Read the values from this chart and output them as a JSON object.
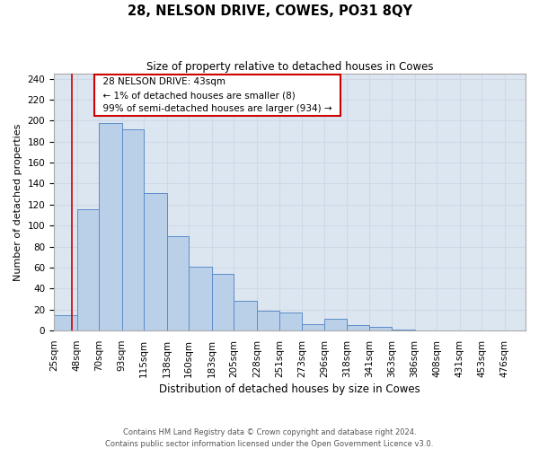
{
  "title": "28, NELSON DRIVE, COWES, PO31 8QY",
  "subtitle": "Size of property relative to detached houses in Cowes",
  "xlabel": "Distribution of detached houses by size in Cowes",
  "ylabel": "Number of detached properties",
  "bin_labels": [
    "25sqm",
    "48sqm",
    "70sqm",
    "93sqm",
    "115sqm",
    "138sqm",
    "160sqm",
    "183sqm",
    "205sqm",
    "228sqm",
    "251sqm",
    "273sqm",
    "296sqm",
    "318sqm",
    "341sqm",
    "363sqm",
    "386sqm",
    "408sqm",
    "431sqm",
    "453sqm",
    "476sqm"
  ],
  "bar_heights": [
    15,
    116,
    198,
    192,
    131,
    90,
    61,
    54,
    28,
    19,
    17,
    6,
    11,
    5,
    4,
    1,
    0,
    0,
    0,
    0
  ],
  "bin_edges": [
    25,
    48,
    70,
    93,
    115,
    138,
    160,
    183,
    205,
    228,
    251,
    273,
    296,
    318,
    341,
    363,
    386,
    408,
    431,
    453,
    476
  ],
  "bar_color": "#bad0e8",
  "bar_edge_color": "#5b8cc8",
  "grid_color": "#d0d8e8",
  "bg_color": "#dce6f0",
  "annotation_box_color": "#ffffff",
  "annotation_box_edge": "#cc0000",
  "red_line_x": 43,
  "ylim": [
    0,
    245
  ],
  "yticks": [
    0,
    20,
    40,
    60,
    80,
    100,
    120,
    140,
    160,
    180,
    200,
    220,
    240
  ],
  "annotation_title": "28 NELSON DRIVE: 43sqm",
  "annotation_line1": "← 1% of detached houses are smaller (8)",
  "annotation_line2": "99% of semi-detached houses are larger (934) →",
  "footer_line1": "Contains HM Land Registry data © Crown copyright and database right 2024.",
  "footer_line2": "Contains public sector information licensed under the Open Government Licence v3.0."
}
